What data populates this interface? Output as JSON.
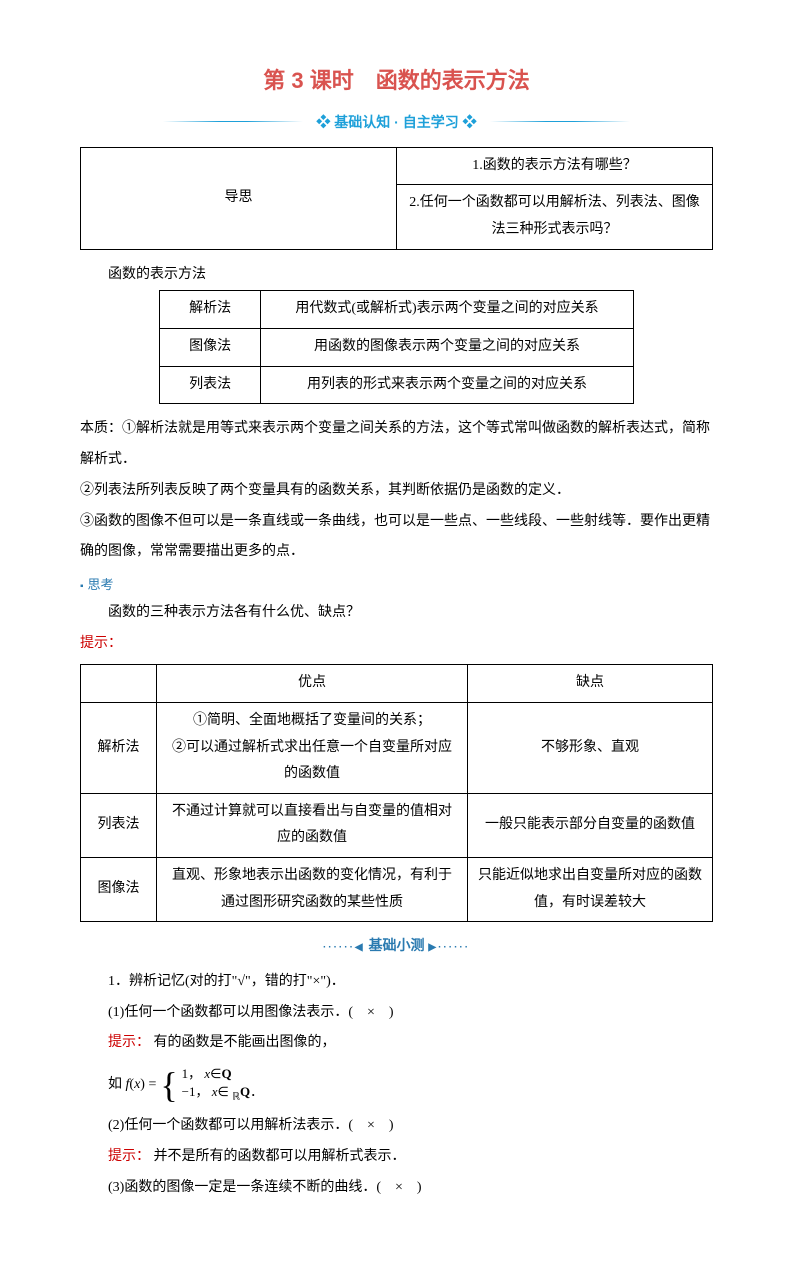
{
  "title": "第 3 课时　函数的表示方法",
  "subtitle": "基础认知 · 自主学习",
  "guide_table": {
    "label": "导思",
    "q1": "1.函数的表示方法有哪些？",
    "q2": "2.任何一个函数都可以用解析法、列表法、图像法三种形式表示吗？"
  },
  "section_heading": "函数的表示方法",
  "methods_table": {
    "rows": [
      {
        "name": "解析法",
        "desc": "用代数式(或解析式)表示两个变量之间的对应关系"
      },
      {
        "name": "图像法",
        "desc": "用函数的图像表示两个变量之间的对应关系"
      },
      {
        "name": "列表法",
        "desc": "用列表的形式来表示两个变量之间的对应关系"
      }
    ]
  },
  "essence": {
    "p1": "本质：①解析法就是用等式来表示两个变量之间关系的方法，这个等式常叫做函数的解析表达式，简称解析式．",
    "p2": "②列表法所列表反映了两个变量具有的函数关系，其判断依据仍是函数的定义．",
    "p3": "③函数的图像不但可以是一条直线或一条曲线，也可以是一些点、一些线段、一些射线等．要作出更精确的图像，常常需要描出更多的点．"
  },
  "think_label": "思考",
  "think_q": "函数的三种表示方法各有什么优、缺点？",
  "hint_label": "提示：",
  "proscons_table": {
    "headers": [
      "",
      "优点",
      "缺点"
    ],
    "rows": [
      {
        "name": "解析法",
        "pro": "①简明、全面地概括了变量间的关系；\n②可以通过解析式求出任意一个自变量所对应的函数值",
        "con": "不够形象、直观"
      },
      {
        "name": "列表法",
        "pro": "不通过计算就可以直接看出与自变量的值相对应的函数值",
        "con": "一般只能表示部分自变量的函数值"
      },
      {
        "name": "图像法",
        "pro": "直观、形象地表示出函数的变化情况，有利于通过图形研究函数的某些性质",
        "con": "只能近似地求出自变量所对应的函数值，有时误差较大"
      }
    ]
  },
  "quiz_divider": "基础小测",
  "quiz": {
    "intro": "1．辨析记忆(对的打\"√\"，错的打\"×\")．",
    "q1": "(1)任何一个函数都可以用图像法表示．(　×　)",
    "hint1": "有的函数是不能画出图像的，",
    "formula_prefix": "如 f(x) =",
    "case1_val": "1，",
    "case1_cond": "x∈Q",
    "case2_val": "−1，",
    "case2_cond": "x∈",
    "case2_set": "∁",
    "case2_sub": "R",
    "case2_end": "Q．",
    "q2": "(2)任何一个函数都可以用解析法表示．(　×　)",
    "hint2": "并不是所有的函数都可以用解析式表示．",
    "q3": "(3)函数的图像一定是一条连续不断的曲线．(　×　)"
  }
}
